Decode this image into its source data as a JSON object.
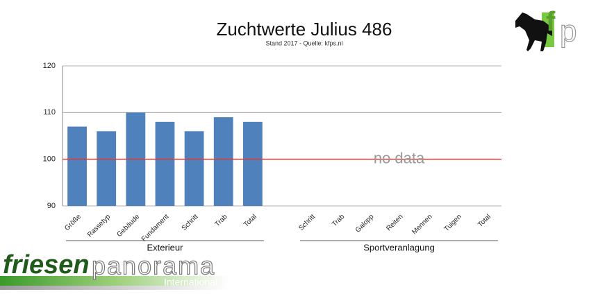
{
  "chart_data": {
    "type": "bar",
    "title": "Zuchtwerte Julius 486",
    "subtitle": "Stand 2017 - Quelle: kfps.nl",
    "categories": [
      "Größe",
      "Rassetyp",
      "Gebäude",
      "Fundament",
      "Schritt",
      "Trab",
      "Total",
      null,
      "Schritt",
      "Trab",
      "Galopp",
      "Reiten",
      "Mennen",
      "Tuigen",
      "Total"
    ],
    "values": [
      107,
      106,
      110,
      108,
      106,
      109,
      108,
      null,
      null,
      null,
      null,
      null,
      null,
      null,
      null
    ],
    "color": "#4f81bd",
    "ylim": [
      90,
      120
    ],
    "yticks": [
      90,
      100,
      110,
      120
    ],
    "grid": true,
    "reference_line": {
      "value": 100,
      "color": "#e03c31"
    },
    "groups": [
      "Exterieur",
      "Sportveranlagung"
    ],
    "annotation": "no data"
  },
  "logo": {
    "letters": [
      "f",
      "p"
    ],
    "brand": [
      "friesen",
      "panorama"
    ],
    "tagline": "International"
  }
}
